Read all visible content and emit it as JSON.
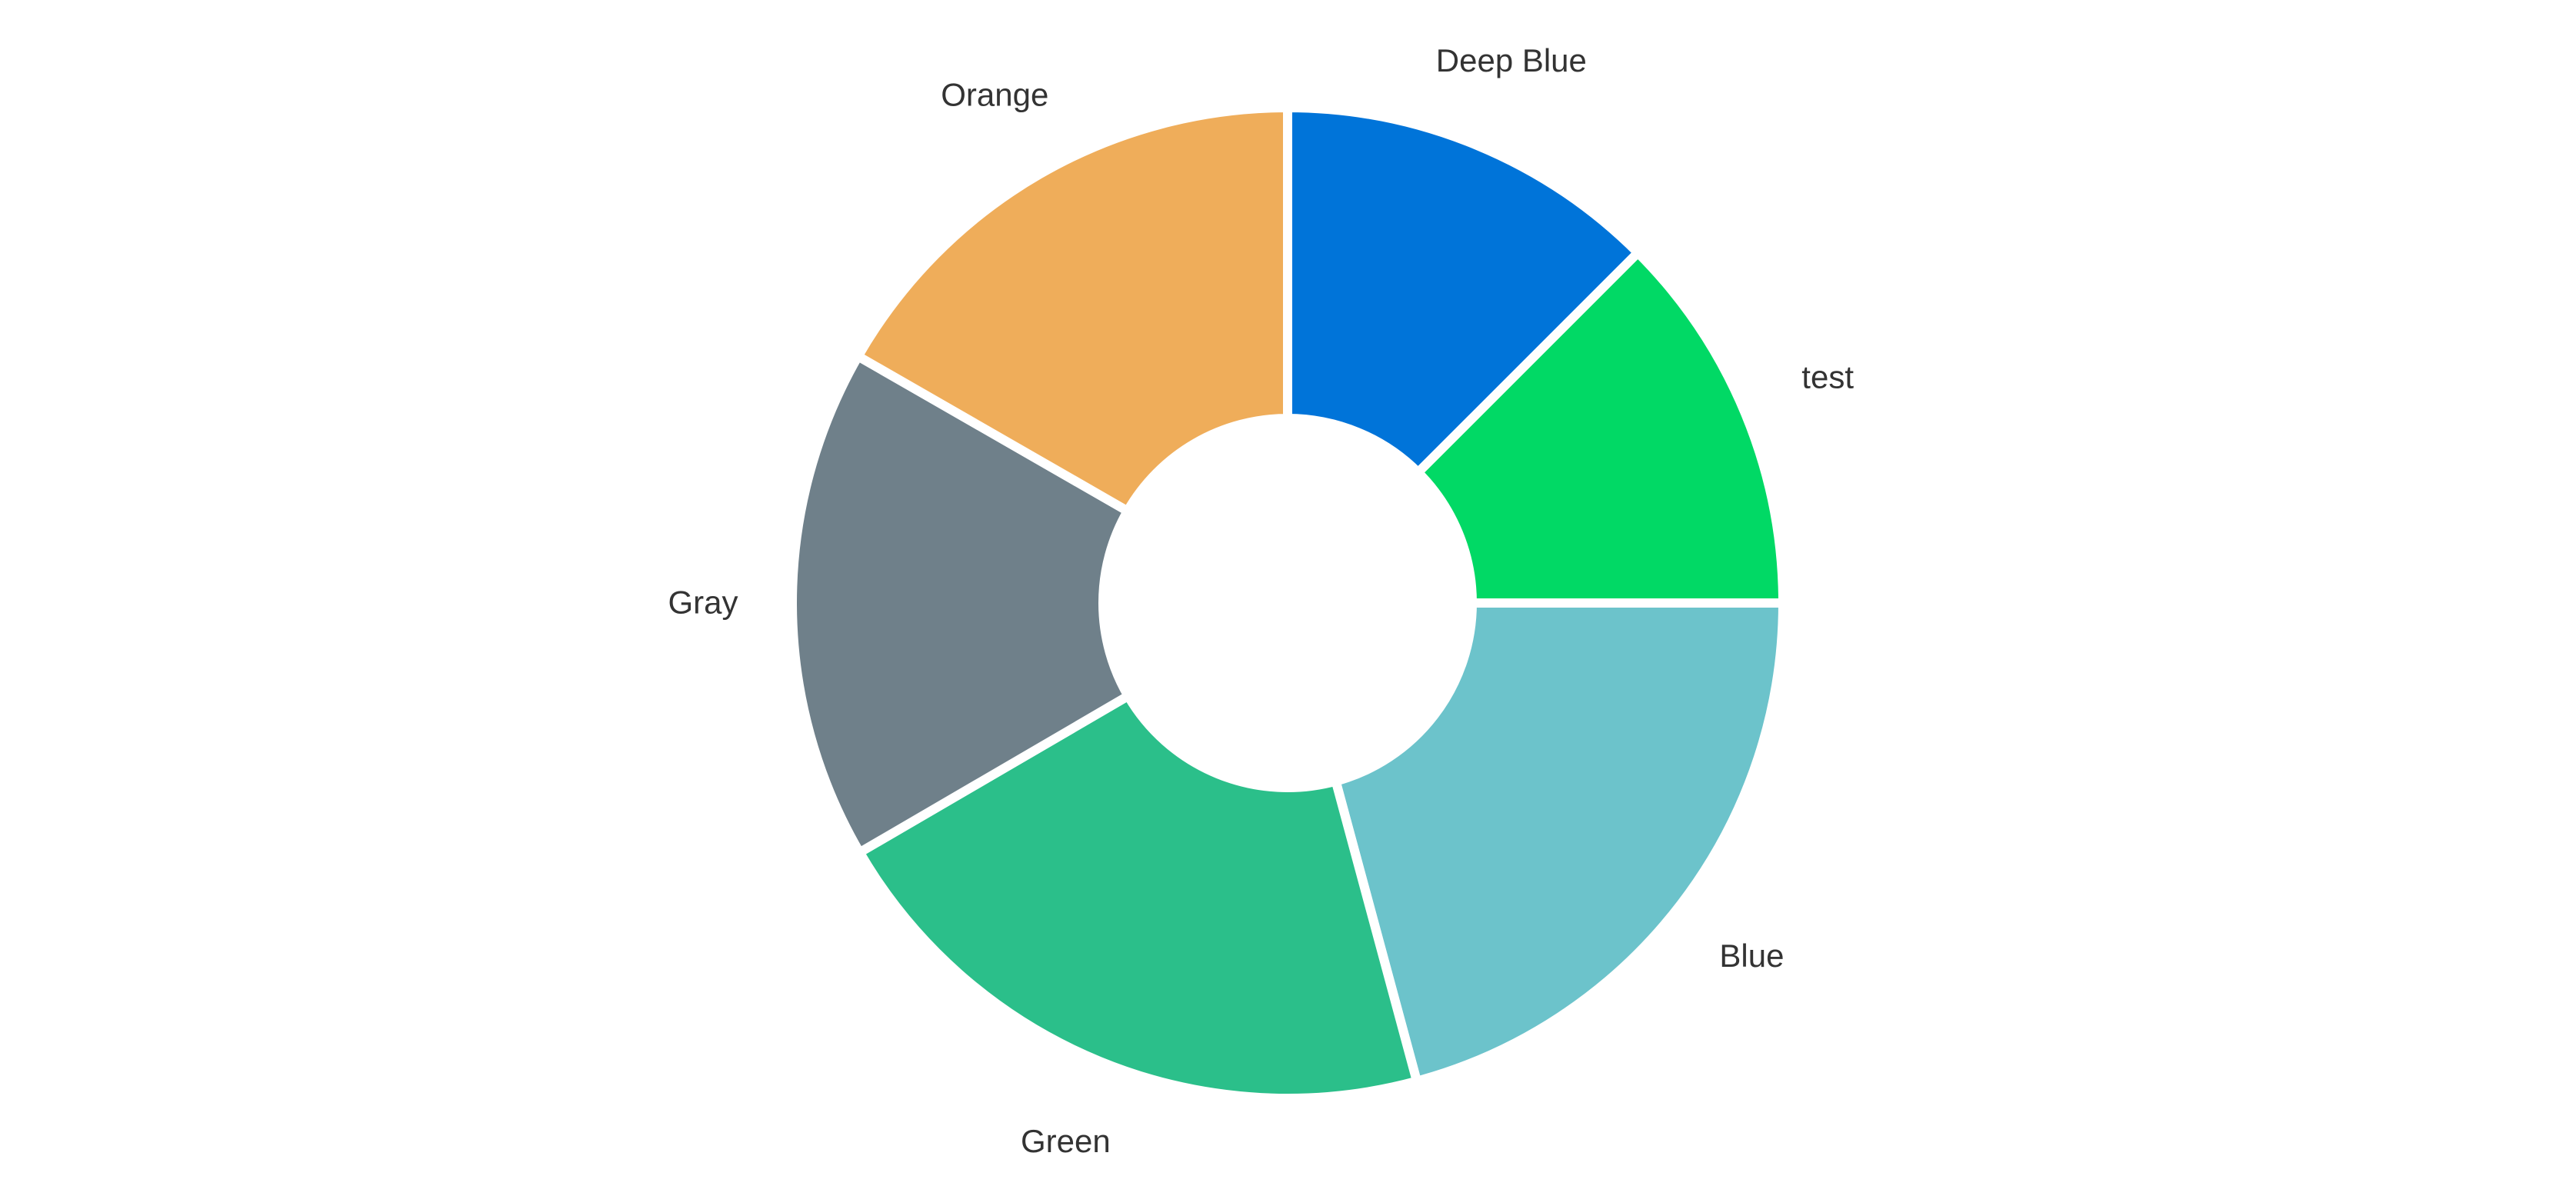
{
  "chart_data": {
    "type": "pie",
    "variant": "donut",
    "title": "",
    "slices": [
      {
        "label": "Deep Blue",
        "value": 12.5,
        "color": "#0074d9"
      },
      {
        "label": "test",
        "value": 12.5,
        "color": "#01d965"
      },
      {
        "label": "Blue",
        "value": 20.8,
        "color": "#6cc3cb"
      },
      {
        "label": "Green",
        "value": 20.8,
        "color": "#2bbf8a"
      },
      {
        "label": "Gray",
        "value": 16.7,
        "color": "#6f808a"
      },
      {
        "label": "Orange",
        "value": 16.7,
        "color": "#efad5a"
      }
    ],
    "legend": "none",
    "labels_position": "outside"
  }
}
